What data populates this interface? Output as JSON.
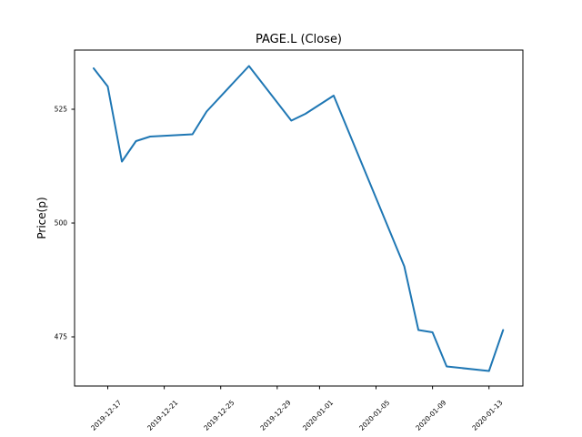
{
  "figure": {
    "background": "#ffffff",
    "frame_color": "#000000"
  },
  "chart_data": {
    "type": "line",
    "title": "PAGE.L (Close)",
    "xlabel": "",
    "ylabel": "Price(p)",
    "grid": false,
    "legend": null,
    "line_color": "#1f77b4",
    "y_ticks": [
      475,
      500,
      525
    ],
    "ylim": [
      464.2,
      538.0
    ],
    "xlim_day_offsets": [
      -1.35,
      30.4
    ],
    "x_ticks": [
      "2019-12-17",
      "2019-12-21",
      "2019-12-25",
      "2019-12-29",
      "2020-01-01",
      "2020-01-05",
      "2020-01-09",
      "2020-01-13"
    ],
    "series": [
      {
        "name": "Close",
        "points": [
          {
            "date": "2019-12-16",
            "value": 534
          },
          {
            "date": "2019-12-17",
            "value": 530
          },
          {
            "date": "2019-12-18",
            "value": 513.5
          },
          {
            "date": "2019-12-19",
            "value": 518
          },
          {
            "date": "2019-12-20",
            "value": 519
          },
          {
            "date": "2019-12-23",
            "value": 519.5
          },
          {
            "date": "2019-12-24",
            "value": 524.5
          },
          {
            "date": "2019-12-27",
            "value": 534.5
          },
          {
            "date": "2019-12-30",
            "value": 522.5
          },
          {
            "date": "2019-12-31",
            "value": 524
          },
          {
            "date": "2020-01-02",
            "value": 528
          },
          {
            "date": "2020-01-03",
            "value": 520.5
          },
          {
            "date": "2020-01-06",
            "value": 498
          },
          {
            "date": "2020-01-07",
            "value": 490.5
          },
          {
            "date": "2020-01-08",
            "value": 476.5
          },
          {
            "date": "2020-01-09",
            "value": 476
          },
          {
            "date": "2020-01-10",
            "value": 468.5
          },
          {
            "date": "2020-01-13",
            "value": 467.5
          },
          {
            "date": "2020-01-14",
            "value": 476.5
          }
        ]
      }
    ]
  }
}
